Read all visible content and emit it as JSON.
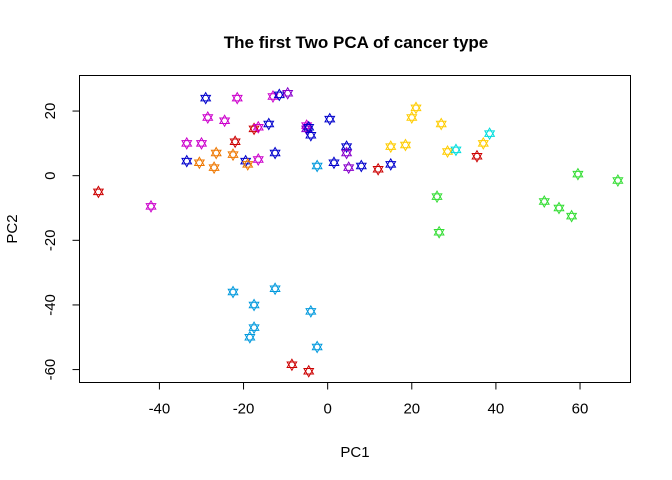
{
  "chart_data": {
    "type": "scatter",
    "title": "The first Two PCA of cancer type",
    "xlabel": "PC1",
    "ylabel": "PC2",
    "xlim": [
      -59,
      72
    ],
    "ylim": [
      -64,
      31
    ],
    "xticks": [
      -40,
      -20,
      0,
      20,
      40,
      60
    ],
    "yticks": [
      -60,
      -40,
      -20,
      0,
      20
    ],
    "xtick_labels": [
      "-40",
      "-20",
      "0",
      "20",
      "40",
      "60"
    ],
    "ytick_labels": [
      "-60",
      "-40",
      "-20",
      "0",
      "20"
    ],
    "grid": false,
    "legend": "none",
    "marker": "star-of-david",
    "points": [
      {
        "x": -54.5,
        "y": -5,
        "color": "#cc0000"
      },
      {
        "x": -42,
        "y": -9.5,
        "color": "#cc00cc"
      },
      {
        "x": -33.5,
        "y": 10,
        "color": "#cc00cc"
      },
      {
        "x": -33.5,
        "y": 4.5,
        "color": "#0000cc"
      },
      {
        "x": -30.5,
        "y": 4,
        "color": "#ee7700"
      },
      {
        "x": -30,
        "y": 10,
        "color": "#cc00cc"
      },
      {
        "x": -29,
        "y": 24,
        "color": "#0000cc"
      },
      {
        "x": -28.5,
        "y": 18,
        "color": "#cc00cc"
      },
      {
        "x": -27,
        "y": 2.5,
        "color": "#ee7700"
      },
      {
        "x": -26.5,
        "y": 7,
        "color": "#ee7700"
      },
      {
        "x": -24.5,
        "y": 17,
        "color": "#cc00cc"
      },
      {
        "x": -22.5,
        "y": 6.5,
        "color": "#ee7700"
      },
      {
        "x": -22,
        "y": 10.5,
        "color": "#cc0000"
      },
      {
        "x": -21.5,
        "y": 24,
        "color": "#cc00cc"
      },
      {
        "x": -22.5,
        "y": -36,
        "color": "#0099dd"
      },
      {
        "x": -19.5,
        "y": 4.5,
        "color": "#0000cc"
      },
      {
        "x": -19,
        "y": 3.5,
        "color": "#ee7700"
      },
      {
        "x": -18.5,
        "y": -50,
        "color": "#0099dd"
      },
      {
        "x": -17.5,
        "y": 14.5,
        "color": "#cc0000"
      },
      {
        "x": -17.5,
        "y": -40,
        "color": "#0099dd"
      },
      {
        "x": -17.5,
        "y": -47,
        "color": "#0099dd"
      },
      {
        "x": -16.5,
        "y": 15,
        "color": "#cc00cc"
      },
      {
        "x": -16.5,
        "y": 5,
        "color": "#cc00cc"
      },
      {
        "x": -14,
        "y": 16,
        "color": "#0000cc"
      },
      {
        "x": -13,
        "y": 24.5,
        "color": "#cc00cc"
      },
      {
        "x": -12.5,
        "y": -35,
        "color": "#0099dd"
      },
      {
        "x": -12.5,
        "y": 7,
        "color": "#0000cc"
      },
      {
        "x": -11.5,
        "y": 25,
        "color": "#0000cc"
      },
      {
        "x": -9.5,
        "y": 25.5,
        "color": "#8800cc"
      },
      {
        "x": -8.5,
        "y": -58.5,
        "color": "#cc0000"
      },
      {
        "x": -5,
        "y": 15.5,
        "color": "#cc00cc"
      },
      {
        "x": -5,
        "y": 14.5,
        "color": "#8800cc"
      },
      {
        "x": -4.5,
        "y": 15,
        "color": "#0000cc"
      },
      {
        "x": -4.5,
        "y": -60.5,
        "color": "#cc0000"
      },
      {
        "x": -4,
        "y": -42,
        "color": "#0099dd"
      },
      {
        "x": -4,
        "y": 12.5,
        "color": "#0000cc"
      },
      {
        "x": -2.5,
        "y": -53,
        "color": "#0099dd"
      },
      {
        "x": -2.5,
        "y": 3,
        "color": "#0099dd"
      },
      {
        "x": 0.5,
        "y": 17.5,
        "color": "#0000cc"
      },
      {
        "x": 1.5,
        "y": 4,
        "color": "#0000cc"
      },
      {
        "x": 4.5,
        "y": 9,
        "color": "#0000cc"
      },
      {
        "x": 4.5,
        "y": 7,
        "color": "#8800cc"
      },
      {
        "x": 5,
        "y": 2.5,
        "color": "#8800cc"
      },
      {
        "x": 8,
        "y": 3,
        "color": "#0000cc"
      },
      {
        "x": 12,
        "y": 2,
        "color": "#cc0000"
      },
      {
        "x": 15,
        "y": 3.5,
        "color": "#0000cc"
      },
      {
        "x": 15,
        "y": 9,
        "color": "#ffcc00"
      },
      {
        "x": 18.5,
        "y": 9.5,
        "color": "#ffcc00"
      },
      {
        "x": 20,
        "y": 18,
        "color": "#ffcc00"
      },
      {
        "x": 21,
        "y": 21,
        "color": "#ffcc00"
      },
      {
        "x": 26,
        "y": -6.5,
        "color": "#33dd33"
      },
      {
        "x": 26.5,
        "y": -17.5,
        "color": "#33dd33"
      },
      {
        "x": 27,
        "y": 16,
        "color": "#ffcc00"
      },
      {
        "x": 28.5,
        "y": 7.5,
        "color": "#ffcc00"
      },
      {
        "x": 30.5,
        "y": 8,
        "color": "#00dddd"
      },
      {
        "x": 35.5,
        "y": 6,
        "color": "#cc0000"
      },
      {
        "x": 37,
        "y": 10,
        "color": "#ffcc00"
      },
      {
        "x": 38.5,
        "y": 13,
        "color": "#00dddd"
      },
      {
        "x": 51.5,
        "y": -8,
        "color": "#33dd33"
      },
      {
        "x": 55,
        "y": -10,
        "color": "#33dd33"
      },
      {
        "x": 58,
        "y": -12.5,
        "color": "#33dd33"
      },
      {
        "x": 59.5,
        "y": 0.5,
        "color": "#33dd33"
      },
      {
        "x": 69,
        "y": -1.5,
        "color": "#33dd33"
      }
    ]
  }
}
